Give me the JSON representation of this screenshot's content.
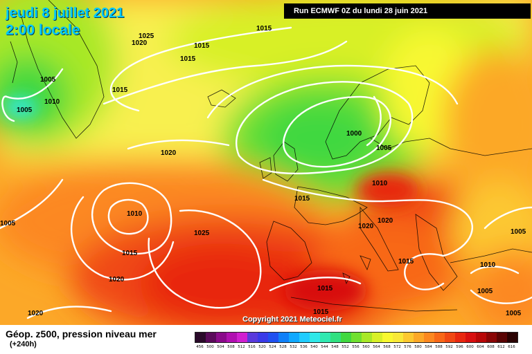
{
  "header": {
    "date": "jeudi 8 juillet 2021",
    "time": "2:00 locale",
    "run": "Run ECMWF 0Z du lundi 28 juin 2021"
  },
  "copyright": "Copyright 2021 Meteociel.fr",
  "legend": {
    "title": "Géop. z500, pression niveau mer",
    "subtitle": "(+240h)",
    "ticks": [
      "456",
      "500",
      "504",
      "508",
      "512",
      "516",
      "520",
      "524",
      "528",
      "532",
      "536",
      "540",
      "544",
      "548",
      "552",
      "556",
      "560",
      "564",
      "568",
      "572",
      "576",
      "580",
      "584",
      "588",
      "592",
      "596",
      "600",
      "604",
      "608",
      "612",
      "616"
    ],
    "colors": [
      "#2a0a2a",
      "#5a0a5a",
      "#8a0a8a",
      "#b010b0",
      "#d020d0",
      "#5a3adc",
      "#3a3ae8",
      "#2050f0",
      "#1080f8",
      "#10a8ff",
      "#20ccff",
      "#30e8e8",
      "#30e8b0",
      "#30e080",
      "#40d840",
      "#70e030",
      "#a8e828",
      "#d8f028",
      "#f8f830",
      "#f8e838",
      "#fcc830",
      "#fca828",
      "#fc8820",
      "#f86818",
      "#f04814",
      "#e82810",
      "#d81010",
      "#b80808",
      "#8a0606",
      "#5a0404",
      "#2a0202"
    ]
  },
  "isobars": {
    "labels": [
      "1025",
      "1020",
      "1015",
      "1015",
      "1015",
      "1005",
      "1005",
      "1010",
      "1015",
      "1020",
      "1000",
      "1005",
      "1010",
      "1015",
      "1010",
      "1015",
      "1025",
      "1020",
      "1020",
      "1020",
      "1020",
      "1015",
      "1015",
      "1015",
      "1010",
      "1005",
      "1005",
      "1005",
      "1005"
    ]
  },
  "colors": {
    "isobar": "#ffffff",
    "land_border": "#000000"
  }
}
